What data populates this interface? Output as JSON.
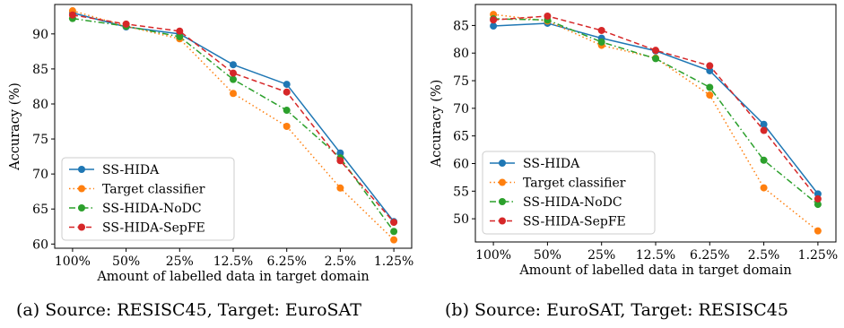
{
  "chart_data": [
    {
      "type": "line",
      "title": "",
      "caption": "(a) Source: RESISC45, Target: EuroSAT",
      "xlabel": "Amount of labelled data in target domain",
      "ylabel": "Accuracy (%)",
      "categories": [
        "100%",
        "50%",
        "25%",
        "12.5%",
        "6.25%",
        "2.5%",
        "1.25%"
      ],
      "ylim": [
        59.4,
        94.2
      ],
      "yticks": [
        60,
        65,
        70,
        75,
        80,
        85,
        90
      ],
      "grid": false,
      "legend": "lower-left",
      "series": [
        {
          "name": "SS-HIDA",
          "color": "#1f77b4",
          "linestyle": "solid",
          "values": [
            93.0,
            91.0,
            90.0,
            85.6,
            82.8,
            73.0,
            63.2
          ]
        },
        {
          "name": "Target classifier",
          "color": "#ff7f0e",
          "linestyle": "dotted",
          "values": [
            93.3,
            91.1,
            89.3,
            81.5,
            76.8,
            68.0,
            60.6
          ]
        },
        {
          "name": "SS-HIDA-NoDC",
          "color": "#2ca02c",
          "linestyle": "dashdot",
          "values": [
            92.2,
            91.1,
            89.6,
            83.5,
            79.1,
            72.3,
            61.8
          ]
        },
        {
          "name": "SS-HIDA-SepFE",
          "color": "#d62728",
          "linestyle": "dashed",
          "values": [
            92.7,
            91.4,
            90.4,
            84.4,
            81.7,
            71.9,
            63.1
          ]
        }
      ]
    },
    {
      "type": "line",
      "title": "",
      "caption": "(b) Source: EuroSAT, Target: RESISC45",
      "xlabel": "Amount of labelled data in target domain",
      "ylabel": "Accuracy (%)",
      "categories": [
        "100%",
        "50%",
        "25%",
        "12.5%",
        "6.25%",
        "2.5%",
        "1.25%"
      ],
      "ylim": [
        45.8,
        88.8
      ],
      "yticks": [
        50,
        55,
        60,
        65,
        70,
        75,
        80,
        85
      ],
      "grid": false,
      "legend": "lower-left",
      "series": [
        {
          "name": "SS-HIDA",
          "color": "#1f77b4",
          "linestyle": "solid",
          "values": [
            84.9,
            85.4,
            82.7,
            80.4,
            76.8,
            67.1,
            54.5
          ]
        },
        {
          "name": "Target classifier",
          "color": "#ff7f0e",
          "linestyle": "dotted",
          "values": [
            87.0,
            85.8,
            81.4,
            79.1,
            72.4,
            55.6,
            47.8
          ]
        },
        {
          "name": "SS-HIDA-NoDC",
          "color": "#2ca02c",
          "linestyle": "dashdot",
          "values": [
            86.2,
            86.0,
            82.0,
            79.0,
            73.8,
            60.6,
            52.6
          ]
        },
        {
          "name": "SS-HIDA-SepFE",
          "color": "#d62728",
          "linestyle": "dashed",
          "values": [
            86.0,
            86.7,
            84.1,
            80.5,
            77.7,
            66.0,
            53.6
          ]
        }
      ]
    }
  ]
}
